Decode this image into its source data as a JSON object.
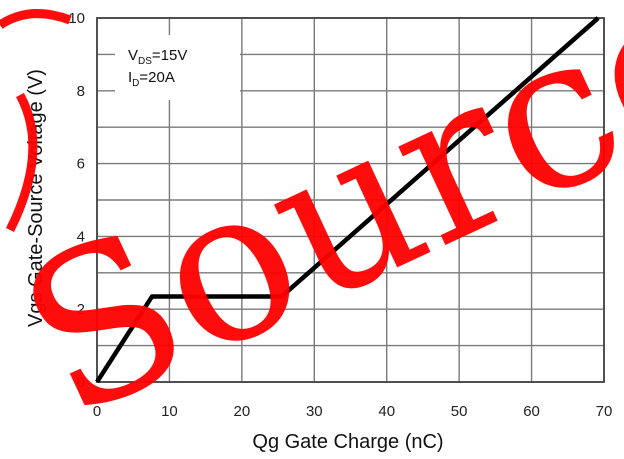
{
  "chart_data": {
    "type": "line",
    "title": "",
    "xlabel": "Qg Gate Charge (nC)",
    "ylabel": "Vgs Gate-Source Voltage (V)",
    "xlim": [
      0,
      70
    ],
    "ylim": [
      0,
      10
    ],
    "xticks": [
      "0",
      "10",
      "20",
      "30",
      "40",
      "50",
      "60",
      "70"
    ],
    "yticks": [
      "0",
      "2",
      "4",
      "6",
      "8",
      "10"
    ],
    "grid": true,
    "series": [
      {
        "x": [
          0,
          7.6,
          25.5,
          69.2
        ],
        "y": [
          0,
          2.35,
          2.35,
          10.0
        ],
        "color": "#000000"
      }
    ],
    "annotations": {
      "vds": {
        "main": "V",
        "sub": "DS",
        "rest": "=15V"
      },
      "id": {
        "main": "I",
        "sub": "D",
        "rest": "=20A"
      }
    }
  },
  "watermark": {
    "text": "SourceTe",
    "color": "#ff0000"
  }
}
